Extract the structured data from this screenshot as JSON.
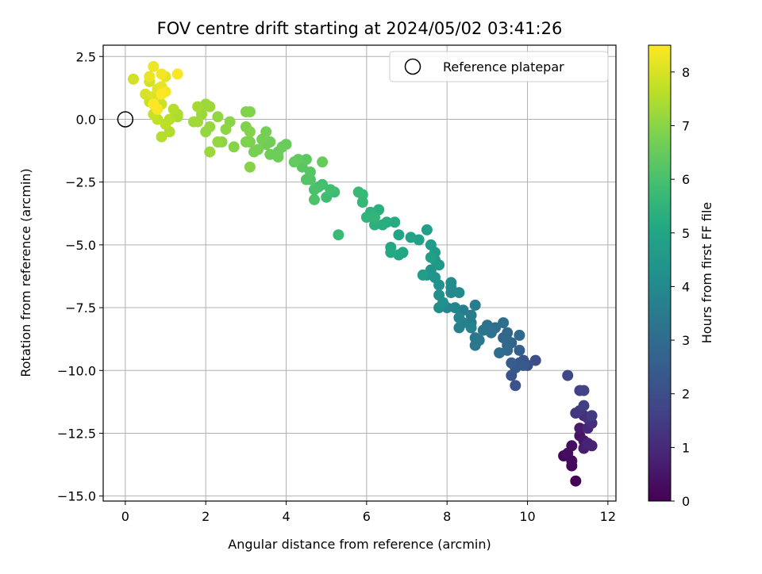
{
  "chart_data": {
    "type": "scatter",
    "title": "FOV centre drift starting at 2024/05/02 03:41:26",
    "xlabel": "Angular distance from reference (arcmin)",
    "ylabel": "Rotation from reference (arcmin)",
    "xlim": [
      -0.55,
      12.2
    ],
    "ylim": [
      -15.2,
      2.95
    ],
    "xticks": [
      0,
      2,
      4,
      6,
      8,
      10,
      12
    ],
    "xtick_labels": [
      "0",
      "2",
      "4",
      "6",
      "8",
      "10",
      "12"
    ],
    "yticks": [
      2.5,
      0,
      -2.5,
      -5,
      -7.5,
      -10,
      -12.5,
      -15
    ],
    "ytick_labels": [
      "2.5",
      "0.0",
      "−2.5",
      "−5.0",
      "−7.5",
      "−10.0",
      "−12.5",
      "−15.0"
    ],
    "grid": true,
    "legend": {
      "position": "top-right",
      "entries": [
        "Reference platepar"
      ]
    },
    "reference_point": {
      "x": 0,
      "y": 0
    },
    "colorbar": {
      "label": "Hours from first FF file",
      "range": [
        0,
        8.5
      ],
      "ticks": [
        0,
        1,
        2,
        3,
        4,
        5,
        6,
        7,
        8
      ],
      "tick_labels": [
        "0",
        "1",
        "2",
        "3",
        "4",
        "5",
        "6",
        "7",
        "8"
      ],
      "colormap": "viridis"
    },
    "points": [
      [
        11.2,
        -14.4,
        0.05
      ],
      [
        10.9,
        -13.4,
        0.15
      ],
      [
        11.1,
        -13.8,
        0.2
      ],
      [
        11.1,
        -13.6,
        0.25
      ],
      [
        11.0,
        -13.3,
        0.3
      ],
      [
        11.1,
        -13.0,
        0.35
      ],
      [
        11.3,
        -12.6,
        0.45
      ],
      [
        11.4,
        -12.8,
        0.5
      ],
      [
        11.3,
        -12.3,
        0.6
      ],
      [
        11.4,
        -13.1,
        0.7
      ],
      [
        11.5,
        -12.9,
        0.8
      ],
      [
        11.6,
        -13.0,
        0.85
      ],
      [
        11.5,
        -12.3,
        0.95
      ],
      [
        11.6,
        -12.1,
        1.05
      ],
      [
        11.4,
        -11.8,
        1.1
      ],
      [
        11.5,
        -11.9,
        1.2
      ],
      [
        11.2,
        -11.7,
        1.3
      ],
      [
        11.3,
        -11.6,
        1.35
      ],
      [
        11.6,
        -11.8,
        1.45
      ],
      [
        11.4,
        -11.4,
        1.55
      ],
      [
        11.3,
        -10.8,
        1.65
      ],
      [
        11.4,
        -10.8,
        1.7
      ],
      [
        11.0,
        -10.2,
        1.8
      ],
      [
        10.2,
        -9.6,
        2.0
      ],
      [
        10.0,
        -9.8,
        2.05
      ],
      [
        9.9,
        -9.6,
        2.1
      ],
      [
        9.7,
        -10.6,
        2.15
      ],
      [
        9.6,
        -10.2,
        2.2
      ],
      [
        9.8,
        -9.7,
        2.3
      ],
      [
        9.9,
        -9.8,
        2.35
      ],
      [
        9.7,
        -9.9,
        2.4
      ],
      [
        9.6,
        -9.7,
        2.5
      ],
      [
        9.8,
        -9.2,
        2.55
      ],
      [
        9.5,
        -9.0,
        2.6
      ],
      [
        9.6,
        -8.9,
        2.7
      ],
      [
        9.4,
        -8.7,
        2.75
      ],
      [
        9.5,
        -8.5,
        2.8
      ],
      [
        9.5,
        -8.8,
        2.85
      ],
      [
        9.8,
        -8.6,
        2.9
      ],
      [
        9.5,
        -9.2,
        2.95
      ],
      [
        9.3,
        -9.3,
        3.0
      ],
      [
        9.2,
        -8.3,
        3.05
      ],
      [
        9.4,
        -8.1,
        3.1
      ],
      [
        9.0,
        -8.2,
        3.15
      ],
      [
        9.1,
        -8.5,
        3.2
      ],
      [
        8.9,
        -8.4,
        3.25
      ],
      [
        8.7,
        -8.7,
        3.3
      ],
      [
        8.7,
        -9.0,
        3.35
      ],
      [
        8.8,
        -8.8,
        3.4
      ],
      [
        8.6,
        -8.1,
        3.45
      ],
      [
        8.6,
        -7.8,
        3.5
      ],
      [
        8.7,
        -7.4,
        3.55
      ],
      [
        8.4,
        -7.6,
        3.6
      ],
      [
        8.4,
        -8.1,
        3.65
      ],
      [
        8.3,
        -8.3,
        3.7
      ],
      [
        8.6,
        -8.3,
        3.75
      ],
      [
        8.3,
        -7.9,
        3.8
      ],
      [
        8.2,
        -7.5,
        3.85
      ],
      [
        8.0,
        -7.5,
        3.9
      ],
      [
        8.1,
        -6.7,
        3.95
      ],
      [
        8.1,
        -6.9,
        4.0
      ],
      [
        8.3,
        -6.9,
        4.05
      ],
      [
        8.1,
        -6.5,
        4.1
      ],
      [
        7.8,
        -7.5,
        4.15
      ],
      [
        7.8,
        -7.0,
        4.2
      ],
      [
        7.9,
        -7.3,
        4.25
      ],
      [
        7.8,
        -6.6,
        4.3
      ],
      [
        7.7,
        -6.3,
        4.35
      ],
      [
        7.6,
        -6.0,
        4.4
      ],
      [
        7.5,
        -6.2,
        4.45
      ],
      [
        7.7,
        -5.6,
        4.5
      ],
      [
        7.8,
        -5.8,
        4.55
      ],
      [
        7.7,
        -5.3,
        4.6
      ],
      [
        7.6,
        -5.0,
        4.65
      ],
      [
        7.4,
        -6.2,
        4.7
      ],
      [
        7.6,
        -5.5,
        4.75
      ],
      [
        7.5,
        -4.4,
        4.8
      ],
      [
        7.3,
        -4.8,
        4.85
      ],
      [
        7.1,
        -4.7,
        4.9
      ],
      [
        6.8,
        -4.6,
        4.95
      ],
      [
        6.9,
        -5.3,
        5.0
      ],
      [
        6.8,
        -5.4,
        5.05
      ],
      [
        6.6,
        -5.1,
        5.1
      ],
      [
        6.6,
        -5.3,
        5.15
      ],
      [
        6.7,
        -4.1,
        5.2
      ],
      [
        6.5,
        -4.1,
        5.25
      ],
      [
        6.4,
        -4.2,
        5.3
      ],
      [
        6.3,
        -3.6,
        5.35
      ],
      [
        6.2,
        -4.2,
        5.4
      ],
      [
        6.1,
        -3.7,
        5.45
      ],
      [
        6.0,
        -3.9,
        5.5
      ],
      [
        6.2,
        -3.9,
        5.55
      ],
      [
        5.9,
        -3.3,
        5.6
      ],
      [
        5.9,
        -3.0,
        5.65
      ],
      [
        5.8,
        -2.9,
        5.7
      ],
      [
        5.3,
        -4.6,
        5.75
      ],
      [
        5.2,
        -2.9,
        5.8
      ],
      [
        5.0,
        -3.1,
        5.85
      ],
      [
        5.1,
        -2.8,
        5.9
      ],
      [
        4.9,
        -2.6,
        5.95
      ],
      [
        4.8,
        -2.7,
        6.0
      ],
      [
        4.7,
        -2.8,
        6.05
      ],
      [
        4.7,
        -3.2,
        6.1
      ],
      [
        4.6,
        -2.4,
        6.15
      ],
      [
        4.5,
        -2.4,
        6.2
      ],
      [
        4.6,
        -2.1,
        6.25
      ],
      [
        4.4,
        -1.9,
        6.3
      ],
      [
        4.5,
        -1.6,
        6.35
      ],
      [
        4.3,
        -1.6,
        6.4
      ],
      [
        4.2,
        -1.7,
        6.45
      ],
      [
        4.9,
        -1.7,
        6.5
      ],
      [
        4.0,
        -1.0,
        6.5
      ],
      [
        3.9,
        -1.1,
        6.55
      ],
      [
        3.8,
        -1.3,
        6.55
      ],
      [
        3.8,
        -1.5,
        6.6
      ],
      [
        3.6,
        -1.4,
        6.6
      ],
      [
        3.6,
        -0.9,
        6.65
      ],
      [
        3.5,
        -1.0,
        6.65
      ],
      [
        3.4,
        -0.8,
        6.7
      ],
      [
        3.5,
        -0.5,
        6.7
      ],
      [
        3.3,
        -1.2,
        6.75
      ],
      [
        3.2,
        -1.3,
        6.75
      ],
      [
        3.1,
        -0.9,
        6.8
      ],
      [
        3.0,
        -0.9,
        6.85
      ],
      [
        3.0,
        -0.3,
        6.85
      ],
      [
        3.1,
        -0.5,
        6.9
      ],
      [
        3.0,
        0.3,
        6.9
      ],
      [
        3.1,
        0.3,
        6.9
      ],
      [
        3.1,
        -1.9,
        6.95
      ],
      [
        2.7,
        -1.1,
        6.95
      ],
      [
        2.6,
        -0.1,
        7.0
      ],
      [
        2.5,
        -0.4,
        7.05
      ],
      [
        2.4,
        -0.9,
        7.05
      ],
      [
        2.3,
        -0.9,
        7.1
      ],
      [
        2.3,
        0.1,
        7.1
      ],
      [
        2.1,
        -0.3,
        7.15
      ],
      [
        2.0,
        -0.5,
        7.15
      ],
      [
        2.1,
        -1.3,
        7.2
      ],
      [
        2.0,
        0.6,
        7.2
      ],
      [
        2.1,
        0.5,
        7.25
      ],
      [
        1.9,
        0.2,
        7.25
      ],
      [
        1.8,
        -0.1,
        7.3
      ],
      [
        1.7,
        -0.1,
        7.3
      ],
      [
        1.8,
        0.5,
        7.35
      ],
      [
        1.3,
        0.1,
        7.4
      ],
      [
        1.3,
        0.2,
        7.45
      ],
      [
        1.1,
        -0.5,
        7.5
      ],
      [
        0.9,
        -0.7,
        7.55
      ],
      [
        1.2,
        0.4,
        7.55
      ],
      [
        1.1,
        0.0,
        7.6
      ],
      [
        1.0,
        -0.2,
        7.65
      ],
      [
        0.8,
        0.0,
        7.7
      ],
      [
        0.6,
        0.7,
        7.75
      ],
      [
        0.7,
        0.2,
        7.8
      ],
      [
        0.9,
        0.6,
        7.85
      ],
      [
        0.2,
        1.6,
        7.9
      ],
      [
        0.6,
        1.5,
        7.95
      ],
      [
        0.5,
        1.0,
        8.0
      ],
      [
        0.7,
        0.9,
        8.05
      ],
      [
        0.8,
        1.2,
        8.1
      ],
      [
        1.0,
        1.7,
        8.15
      ],
      [
        0.9,
        1.3,
        8.2
      ],
      [
        0.6,
        1.7,
        8.25
      ],
      [
        0.7,
        2.1,
        8.3
      ],
      [
        0.9,
        1.8,
        8.35
      ],
      [
        1.0,
        1.1,
        8.4
      ],
      [
        1.3,
        1.8,
        8.45
      ],
      [
        0.8,
        0.4,
        8.45
      ],
      [
        0.7,
        0.6,
        8.5
      ],
      [
        0.9,
        1.0,
        8.5
      ]
    ]
  }
}
